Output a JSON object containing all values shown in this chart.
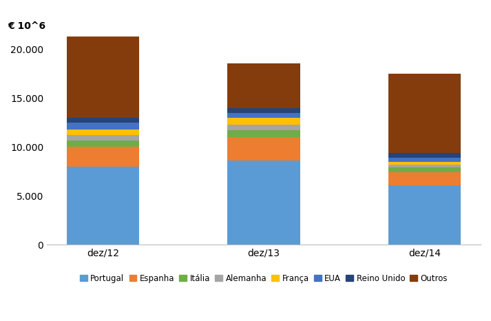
{
  "categories": [
    "dez/12",
    "dez/13",
    "dez/14"
  ],
  "series": {
    "Portugal": [
      8000,
      8600,
      6100
    ],
    "Espanha": [
      2000,
      2400,
      1300
    ],
    "Itália": [
      700,
      700,
      500
    ],
    "Alemanha": [
      500,
      600,
      300
    ],
    "França": [
      600,
      700,
      300
    ],
    "EUA": [
      700,
      500,
      400
    ],
    "Reino Unido": [
      500,
      500,
      500
    ],
    "Outros": [
      8300,
      4600,
      8100
    ]
  },
  "colors": {
    "Portugal": "#5B9BD5",
    "Espanha": "#ED7D31",
    "Itália": "#70AD47",
    "Alemanha": "#A5A5A5",
    "França": "#FFC000",
    "EUA": "#4472C4",
    "Reino Unido": "#264478",
    "Outros": "#843C0C"
  },
  "ylabel": "€ 10^6",
  "ylim": [
    0,
    22000
  ],
  "yticks": [
    0,
    5000,
    10000,
    15000,
    20000
  ],
  "ytick_labels": [
    "0",
    "5.000",
    "10.000",
    "15.000",
    "20.000"
  ],
  "bar_width": 0.45,
  "figsize": [
    7.13,
    4.66
  ],
  "dpi": 100,
  "background_color": "#FFFFFF"
}
